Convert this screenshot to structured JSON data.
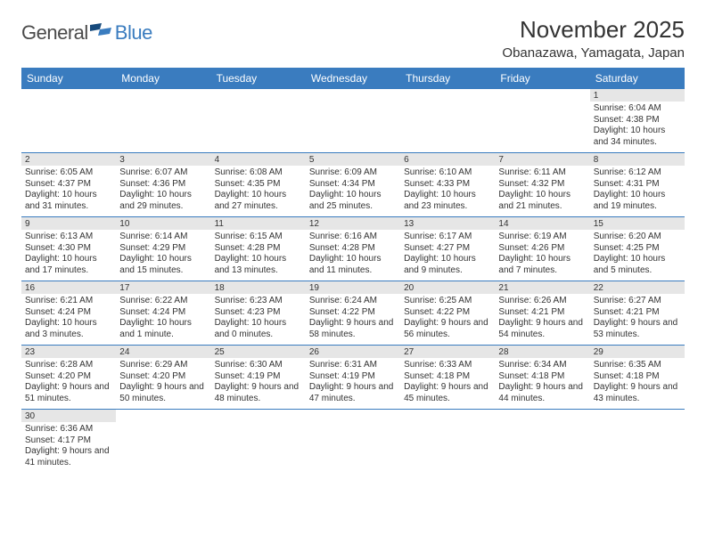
{
  "logo": {
    "general": "General",
    "blue": "Blue"
  },
  "header": {
    "month": "November 2025",
    "location": "Obanazawa, Yamagata, Japan"
  },
  "colors": {
    "header_bg": "#3a7cbf",
    "gray_bar": "#e6e6e6",
    "text": "#333333"
  },
  "dayNames": [
    "Sunday",
    "Monday",
    "Tuesday",
    "Wednesday",
    "Thursday",
    "Friday",
    "Saturday"
  ],
  "weeks": [
    [
      null,
      null,
      null,
      null,
      null,
      null,
      {
        "n": 1,
        "sr": "6:04 AM",
        "ss": "4:38 PM",
        "dl": "10 hours and 34 minutes."
      }
    ],
    [
      {
        "n": 2,
        "sr": "6:05 AM",
        "ss": "4:37 PM",
        "dl": "10 hours and 31 minutes."
      },
      {
        "n": 3,
        "sr": "6:07 AM",
        "ss": "4:36 PM",
        "dl": "10 hours and 29 minutes."
      },
      {
        "n": 4,
        "sr": "6:08 AM",
        "ss": "4:35 PM",
        "dl": "10 hours and 27 minutes."
      },
      {
        "n": 5,
        "sr": "6:09 AM",
        "ss": "4:34 PM",
        "dl": "10 hours and 25 minutes."
      },
      {
        "n": 6,
        "sr": "6:10 AM",
        "ss": "4:33 PM",
        "dl": "10 hours and 23 minutes."
      },
      {
        "n": 7,
        "sr": "6:11 AM",
        "ss": "4:32 PM",
        "dl": "10 hours and 21 minutes."
      },
      {
        "n": 8,
        "sr": "6:12 AM",
        "ss": "4:31 PM",
        "dl": "10 hours and 19 minutes."
      }
    ],
    [
      {
        "n": 9,
        "sr": "6:13 AM",
        "ss": "4:30 PM",
        "dl": "10 hours and 17 minutes."
      },
      {
        "n": 10,
        "sr": "6:14 AM",
        "ss": "4:29 PM",
        "dl": "10 hours and 15 minutes."
      },
      {
        "n": 11,
        "sr": "6:15 AM",
        "ss": "4:28 PM",
        "dl": "10 hours and 13 minutes."
      },
      {
        "n": 12,
        "sr": "6:16 AM",
        "ss": "4:28 PM",
        "dl": "10 hours and 11 minutes."
      },
      {
        "n": 13,
        "sr": "6:17 AM",
        "ss": "4:27 PM",
        "dl": "10 hours and 9 minutes."
      },
      {
        "n": 14,
        "sr": "6:19 AM",
        "ss": "4:26 PM",
        "dl": "10 hours and 7 minutes."
      },
      {
        "n": 15,
        "sr": "6:20 AM",
        "ss": "4:25 PM",
        "dl": "10 hours and 5 minutes."
      }
    ],
    [
      {
        "n": 16,
        "sr": "6:21 AM",
        "ss": "4:24 PM",
        "dl": "10 hours and 3 minutes."
      },
      {
        "n": 17,
        "sr": "6:22 AM",
        "ss": "4:24 PM",
        "dl": "10 hours and 1 minute."
      },
      {
        "n": 18,
        "sr": "6:23 AM",
        "ss": "4:23 PM",
        "dl": "10 hours and 0 minutes."
      },
      {
        "n": 19,
        "sr": "6:24 AM",
        "ss": "4:22 PM",
        "dl": "9 hours and 58 minutes."
      },
      {
        "n": 20,
        "sr": "6:25 AM",
        "ss": "4:22 PM",
        "dl": "9 hours and 56 minutes."
      },
      {
        "n": 21,
        "sr": "6:26 AM",
        "ss": "4:21 PM",
        "dl": "9 hours and 54 minutes."
      },
      {
        "n": 22,
        "sr": "6:27 AM",
        "ss": "4:21 PM",
        "dl": "9 hours and 53 minutes."
      }
    ],
    [
      {
        "n": 23,
        "sr": "6:28 AM",
        "ss": "4:20 PM",
        "dl": "9 hours and 51 minutes."
      },
      {
        "n": 24,
        "sr": "6:29 AM",
        "ss": "4:20 PM",
        "dl": "9 hours and 50 minutes."
      },
      {
        "n": 25,
        "sr": "6:30 AM",
        "ss": "4:19 PM",
        "dl": "9 hours and 48 minutes."
      },
      {
        "n": 26,
        "sr": "6:31 AM",
        "ss": "4:19 PM",
        "dl": "9 hours and 47 minutes."
      },
      {
        "n": 27,
        "sr": "6:33 AM",
        "ss": "4:18 PM",
        "dl": "9 hours and 45 minutes."
      },
      {
        "n": 28,
        "sr": "6:34 AM",
        "ss": "4:18 PM",
        "dl": "9 hours and 44 minutes."
      },
      {
        "n": 29,
        "sr": "6:35 AM",
        "ss": "4:18 PM",
        "dl": "9 hours and 43 minutes."
      }
    ],
    [
      {
        "n": 30,
        "sr": "6:36 AM",
        "ss": "4:17 PM",
        "dl": "9 hours and 41 minutes."
      },
      null,
      null,
      null,
      null,
      null,
      null
    ]
  ],
  "labels": {
    "sunrise": "Sunrise:",
    "sunset": "Sunset:",
    "daylight": "Daylight:"
  }
}
